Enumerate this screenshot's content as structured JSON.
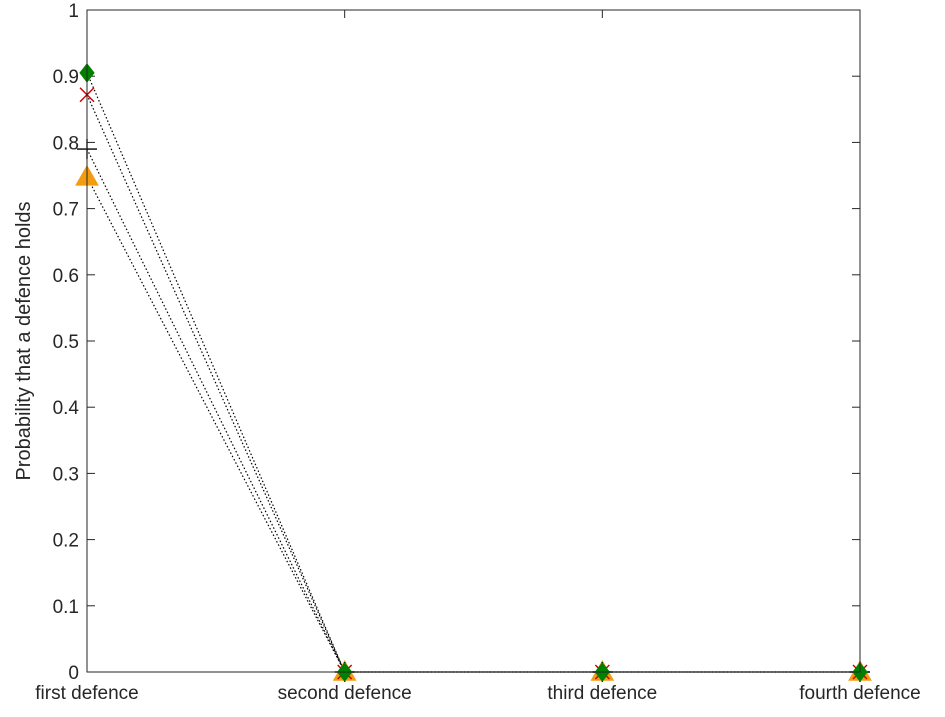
{
  "chart_data": {
    "type": "line",
    "categories": [
      "first defence",
      "second defence",
      "third defence",
      "fourth defence"
    ],
    "ylabel": "Probability that a defence holds",
    "xlabel": "",
    "ylim": [
      0,
      1
    ],
    "yticks": [
      0,
      0.1,
      0.2,
      0.3,
      0.4,
      0.5,
      0.6,
      0.7,
      0.8,
      0.9,
      1
    ],
    "ytick_labels": [
      "0",
      "0.1",
      "0.2",
      "0.3",
      "0.4",
      "0.5",
      "0.6",
      "0.7",
      "0.8",
      "0.9",
      "1"
    ],
    "grid": false,
    "line_style": "dotted",
    "line_color": "#000000",
    "series": [
      {
        "marker": "diamond",
        "color": "#008000",
        "values": [
          0.905,
          0,
          0,
          0
        ]
      },
      {
        "marker": "x",
        "color": "#cc0000",
        "values": [
          0.872,
          0,
          0,
          0
        ]
      },
      {
        "marker": "plus",
        "color": "#000000",
        "values": [
          0.79,
          0,
          0,
          0
        ]
      },
      {
        "marker": "triangle",
        "color": "#f39c12",
        "values": [
          0.748,
          0,
          0,
          0
        ]
      }
    ]
  }
}
